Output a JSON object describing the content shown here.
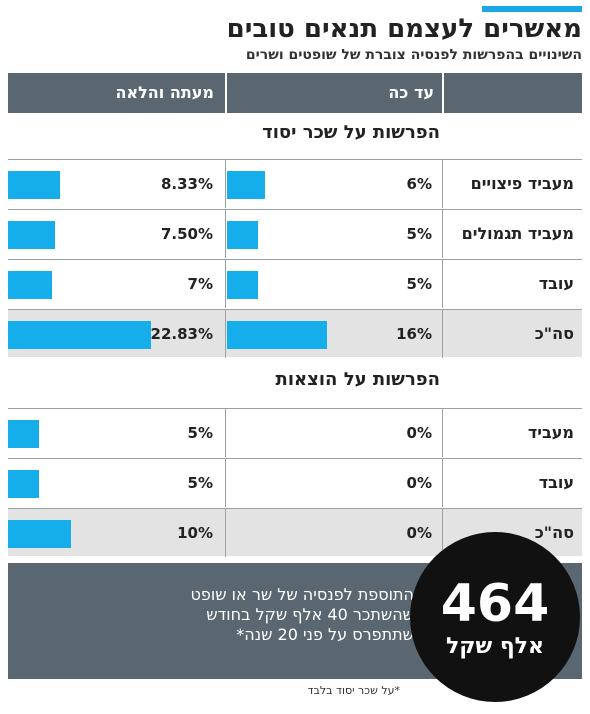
{
  "title": "מאשרים לעצמם תנאים טובים",
  "subtitle": "השינויים בהפרשות לפנסיה צוברת של שופטים ושרים",
  "colors": {
    "bar": "#16adeb",
    "header": "#5a6770",
    "accent": "#1aa7e8",
    "total_row": "#e3e3e3"
  },
  "columns": {
    "current": "עד כה",
    "after": "מעתה והלאה"
  },
  "chart_data": {
    "type": "bar",
    "orientation": "horizontal",
    "unit": "%",
    "groups": [
      {
        "title": "הפרשות על שכר יסוד",
        "rows": [
          {
            "label": "מעביד פיצויים",
            "current": 6,
            "after": 8.33,
            "current_text": "6%",
            "after_text": "8.33%"
          },
          {
            "label": "מעביד תגמולים",
            "current": 5,
            "after": 7.5,
            "current_text": "5%",
            "after_text": "7.50%"
          },
          {
            "label": "עובד",
            "current": 5,
            "after": 7,
            "current_text": "5%",
            "after_text": "7%"
          },
          {
            "label": "סה\"כ",
            "current": 16,
            "after": 22.83,
            "current_text": "16%",
            "after_text": "22.83%",
            "total": true
          }
        ]
      },
      {
        "title": "הפרשות על הוצאות",
        "rows": [
          {
            "label": "מעביד",
            "current": 0,
            "after": 5,
            "current_text": "0%",
            "after_text": "5%"
          },
          {
            "label": "עובד",
            "current": 0,
            "after": 5,
            "current_text": "0%",
            "after_text": "5%"
          },
          {
            "label": "סה\"כ",
            "current": 0,
            "after": 10,
            "current_text": "0%",
            "after_text": "10%",
            "total": true
          }
        ]
      }
    ]
  },
  "summary": {
    "lines": [
      "התוספת לפנסיה של שר או שופט",
      "שהשתכר 40 אלף שקל בחודש",
      "שתתפרס על פני 20 שנה*"
    ],
    "value": "464",
    "unit": "אלף שקל"
  },
  "footnote": "*על שכר יסוד בלבד"
}
